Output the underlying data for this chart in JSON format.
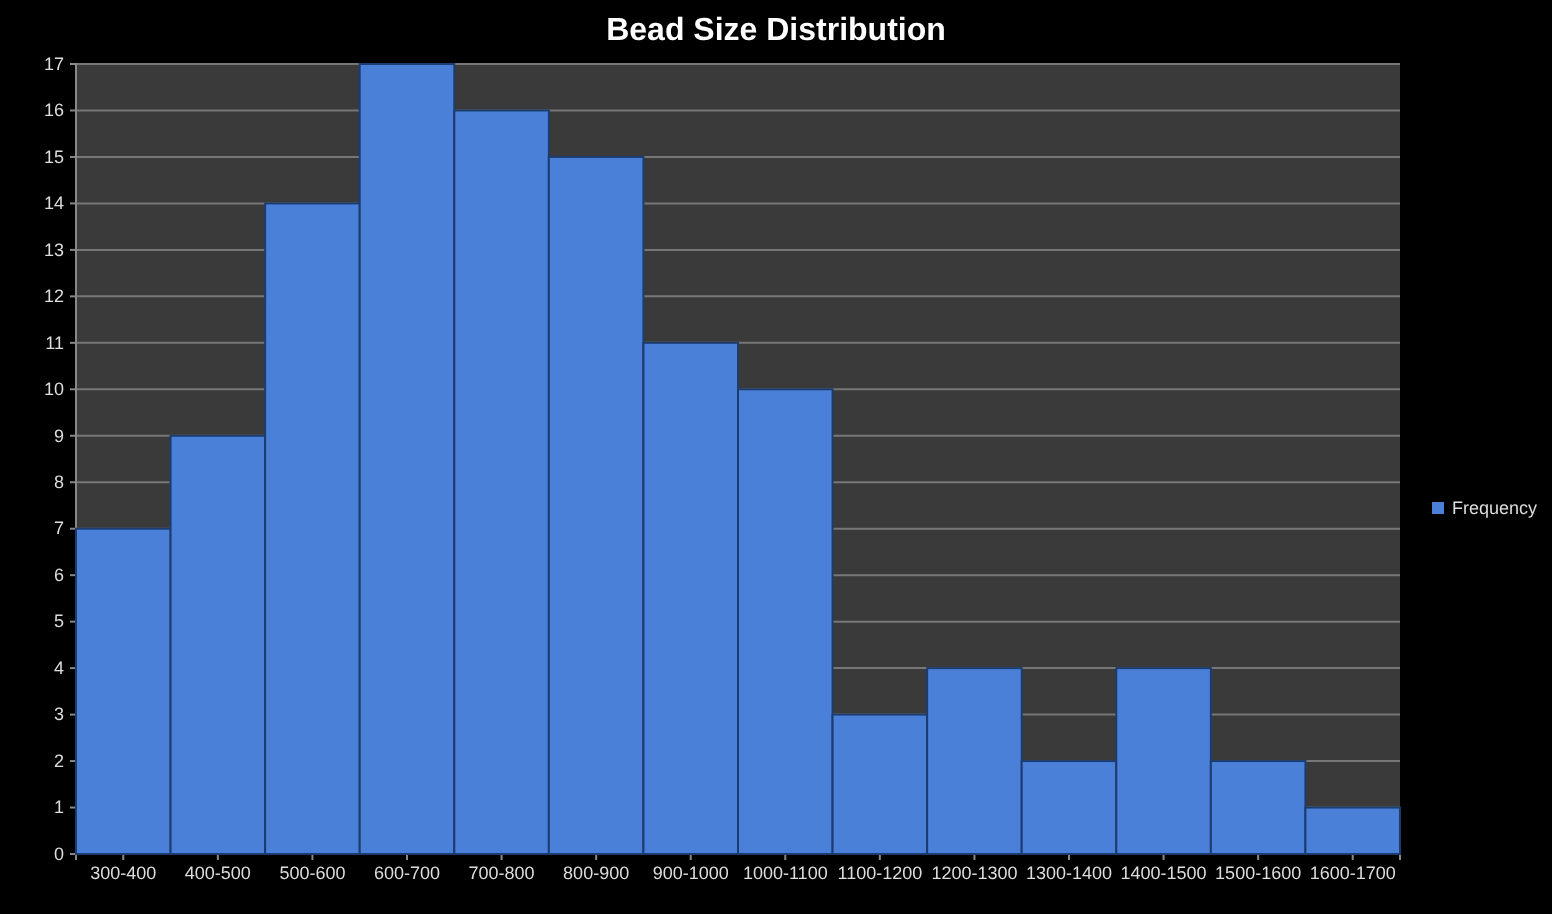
{
  "chart_data": {
    "type": "bar",
    "title": "Bead Size Distribution",
    "categories": [
      "300-400",
      "400-500",
      "500-600",
      "600-700",
      "700-800",
      "800-900",
      "900-1000",
      "1000-1100",
      "1100-1200",
      "1200-1300",
      "1300-1400",
      "1400-1500",
      "1500-1600",
      "1600-1700"
    ],
    "series": [
      {
        "name": "Frequency",
        "color": "#4a80d8",
        "values": [
          7,
          9,
          14,
          17,
          16,
          15,
          11,
          10,
          3,
          4,
          2,
          4,
          2,
          1
        ]
      }
    ],
    "ylim": [
      0,
      17
    ],
    "yticks": [
      0,
      1,
      2,
      3,
      4,
      5,
      6,
      7,
      8,
      9,
      10,
      11,
      12,
      13,
      14,
      15,
      16,
      17
    ],
    "grid": "y",
    "legend": "right"
  }
}
